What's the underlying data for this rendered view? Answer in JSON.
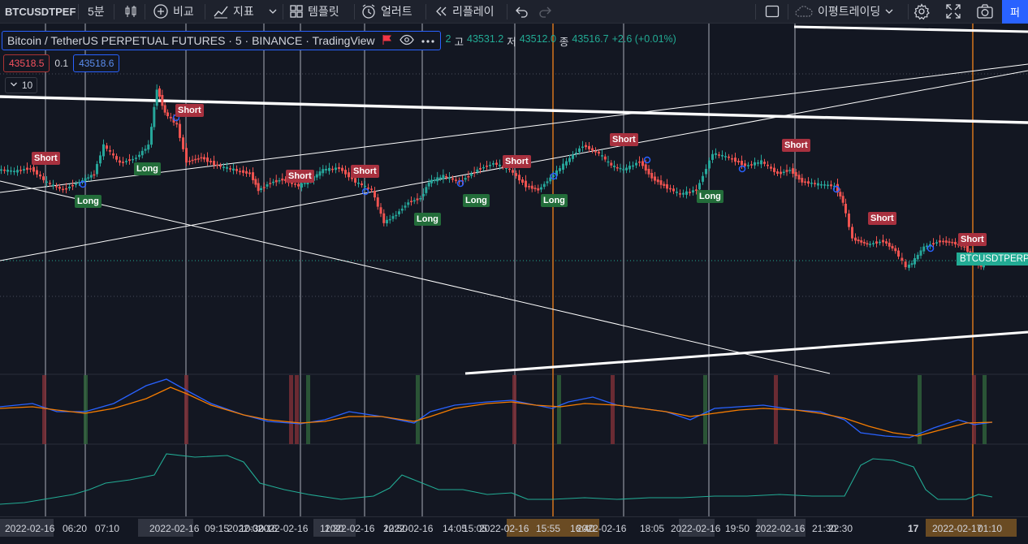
{
  "toolbar": {
    "symbol": "BTCUSDTPEF",
    "interval": "5분",
    "compare_label": "비교",
    "indicators_label": "지표",
    "templates_label": "템플릿",
    "alert_label": "얼러트",
    "replay_label": "리플레이",
    "layout_name": "이평트레이딩",
    "publish_label": "퍼"
  },
  "legend": {
    "title": "Bitcoin / TetherUS PERPETUAL FUTURES · 5 · BINANCE · TradingView",
    "ohlc_prefix": "2",
    "high_label": "고",
    "high_value": "43531.2",
    "low_label": "저",
    "low_value": "43512.0",
    "close_label": "종",
    "close_value": "43516.7",
    "change": "+2.6 (+0.01%)"
  },
  "price_row": {
    "sell": "43518.5",
    "spread": "0.1",
    "buy": "43518.6"
  },
  "collapse_count": "10",
  "symbol_tag": "BTCUSDTPERP",
  "colors": {
    "background": "#131722",
    "up": "#26a69a",
    "down": "#ef5350",
    "short_label": "#a8313f",
    "long_label": "#236d3a",
    "fast_line": "#2962ff",
    "slow_line": "#f57c00",
    "osc_line": "#22ab94",
    "accent": "#2962ff"
  },
  "signals": [
    {
      "type": "short",
      "text": "Short"
    },
    {
      "type": "long",
      "text": "Long"
    },
    {
      "type": "short",
      "text": "Short"
    },
    {
      "type": "long",
      "text": "Long"
    },
    {
      "type": "short",
      "text": "Short"
    },
    {
      "type": "short",
      "text": "Short"
    },
    {
      "type": "long",
      "text": "Long"
    },
    {
      "type": "long",
      "text": "Long"
    },
    {
      "type": "short",
      "text": "Short"
    },
    {
      "type": "long",
      "text": "Long"
    },
    {
      "type": "short",
      "text": "Short"
    },
    {
      "type": "long",
      "text": "Long"
    },
    {
      "type": "short",
      "text": "Short"
    },
    {
      "type": "short",
      "text": "Short"
    },
    {
      "type": "short",
      "text": "Short"
    }
  ],
  "time_axis": [
    "2022-02-16",
    "06:20",
    "2022-02-16",
    "07:10",
    "2022-02-16",
    "09:15",
    "10:30",
    "2022-02-16",
    "11:30",
    "2022-02-16",
    "12:50",
    "2022-02-16",
    "14:05",
    "15:05",
    "2022-02-16",
    "15:55",
    "16:40",
    "2022-02-16",
    "18:05",
    "2022-02-16",
    "19:50",
    "2022-02-16",
    "21:30",
    "22:30",
    "17",
    "2022-02-17",
    "01:10"
  ],
  "icons": [
    "candles-icon",
    "plus-circle-icon",
    "indicators-icon",
    "templates-icon",
    "alarm-icon",
    "replay-icon",
    "undo-icon",
    "redo-icon",
    "layout-icon",
    "cloud-icon",
    "gear-icon",
    "fullscreen-icon",
    "camera-icon",
    "eye-icon",
    "flag-icon",
    "more-icon"
  ]
}
